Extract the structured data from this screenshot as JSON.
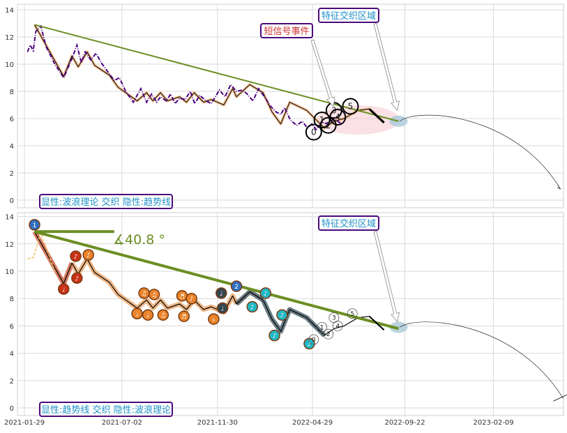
{
  "chart_data": [
    {
      "type": "line",
      "panel": "top",
      "ylim": [
        -0.4,
        14.4
      ],
      "yticks": [
        0,
        2,
        4,
        6,
        8,
        10,
        12,
        14
      ],
      "grid": true,
      "series": [
        {
          "role": "price",
          "color": "#4b0082",
          "style": "dash-dot",
          "x": [
            "2021-02-03",
            "2021-02-07",
            "2021-02-12",
            "2021-02-16",
            "2021-02-24",
            "2021-03-04",
            "2021-03-18",
            "2021-04-01",
            "2021-04-14",
            "2021-04-22",
            "2021-04-29",
            "2021-05-05",
            "2021-05-14",
            "2021-05-22",
            "2021-06-01",
            "2021-06-12",
            "2021-06-20",
            "2021-06-28",
            "2021-07-08",
            "2021-07-20",
            "2021-08-01",
            "2021-08-10",
            "2021-08-18",
            "2021-08-26",
            "2021-09-01",
            "2021-09-10",
            "2021-09-17",
            "2021-09-24",
            "2021-10-01",
            "2021-10-10",
            "2021-10-18",
            "2021-10-25",
            "2021-11-02",
            "2021-11-12",
            "2021-11-20",
            "2021-12-03",
            "2021-12-12",
            "2021-12-21",
            "2021-12-30",
            "2022-01-08",
            "2022-01-16",
            "2022-01-25",
            "2022-02-03",
            "2022-02-12",
            "2022-02-22",
            "2022-03-02",
            "2022-03-10",
            "2022-03-16",
            "2022-03-25",
            "2022-04-04",
            "2022-04-13",
            "2022-04-21",
            "2022-04-28",
            "2022-05-05",
            "2022-05-14",
            "2022-05-24",
            "2022-06-02",
            "2022-06-14"
          ],
          "y": [
            10.9,
            11.4,
            11.0,
            12.4,
            12.8,
            11.3,
            10.0,
            9.0,
            10.4,
            11.4,
            10.1,
            10.9,
            10.3,
            10.8,
            10.0,
            9.3,
            8.8,
            9.0,
            8.0,
            7.2,
            8.2,
            7.2,
            7.8,
            7.2,
            7.6,
            7.3,
            7.8,
            7.1,
            7.5,
            7.4,
            8.0,
            7.1,
            7.7,
            7.3,
            7.1,
            8.1,
            7.6,
            8.5,
            8.0,
            8.1,
            7.8,
            7.3,
            8.2,
            7.6,
            6.9,
            6.5,
            6.3,
            6.8,
            5.9,
            5.5,
            5.8,
            5.3,
            5.6,
            5.2,
            5.7,
            5.6,
            6.0,
            5.6
          ]
        },
        {
          "role": "wave",
          "color": "#000000",
          "x": [
            "2021-02-14",
            "2021-04-01",
            "2021-04-14",
            "2021-04-24",
            "2021-05-08",
            "2021-05-20",
            "2021-06-12",
            "2021-06-26",
            "2021-07-26",
            "2021-08-10",
            "2021-08-20",
            "2021-09-01",
            "2021-09-12",
            "2021-10-01",
            "2021-10-12",
            "2021-10-24",
            "2021-11-08",
            "2021-11-20",
            "2021-12-10",
            "2021-12-24",
            "2021-12-30",
            "2022-01-20",
            "2022-02-10",
            "2022-02-24",
            "2022-03-10",
            "2022-03-24",
            "2022-04-20",
            "2022-05-18",
            "2022-06-02",
            "2022-06-18",
            "2022-07-10",
            "2022-07-28",
            "2022-08-20"
          ],
          "y": [
            12.9,
            9.1,
            10.6,
            9.8,
            10.9,
            9.9,
            9.2,
            8.3,
            7.3,
            7.9,
            7.3,
            7.9,
            7.3,
            7.6,
            7.2,
            7.9,
            7.2,
            7.4,
            7.0,
            8.2,
            7.6,
            8.5,
            7.9,
            6.5,
            5.6,
            7.2,
            6.6,
            5.3,
            5.8,
            6.0,
            6.6,
            6.7,
            5.7
          ]
        },
        {
          "role": "trendline",
          "color": "#6b8e23",
          "x": [
            "2021-02-14",
            "2022-09-12"
          ],
          "y": [
            12.9,
            5.8
          ]
        }
      ],
      "wave_labels": [
        {
          "x": "2022-05-01",
          "y": 5.0,
          "label": "0"
        },
        {
          "x": "2022-05-14",
          "y": 5.9,
          "label": "1"
        },
        {
          "x": "2022-05-24",
          "y": 5.5,
          "label": "2"
        },
        {
          "x": "2022-06-02",
          "y": 6.6,
          "label": "3"
        },
        {
          "x": "2022-06-08",
          "y": 6.1,
          "label": "4"
        },
        {
          "x": "2022-06-28",
          "y": 6.9,
          "label": "5"
        }
      ],
      "annotations": [
        {
          "text": "特征交织区域",
          "color": "#1e90c8",
          "arrow_to": {
            "x": "2022-09-10",
            "y": 6.3
          }
        },
        {
          "text": "短信号事件",
          "color": "#cc3333",
          "arrow_to": {
            "x": "2022-06-01",
            "y": 6.7
          }
        },
        {
          "text": "显性:波浪理论 交织 隐性:趋势线",
          "color": "#1e90c8"
        }
      ],
      "projection_curve": {
        "from": {
          "x": "2022-09-14",
          "y": 5.8
        },
        "peak": {
          "x": "2022-11-12",
          "y": 6.3
        },
        "to": {
          "x": "2023-05-26",
          "y": 0.8
        }
      }
    },
    {
      "type": "line",
      "panel": "bottom",
      "ylim": [
        -0.4,
        14.4
      ],
      "yticks": [
        0,
        2,
        4,
        6,
        8,
        10,
        12,
        14
      ],
      "grid": true,
      "series": [
        {
          "role": "wave",
          "color": "#000000",
          "x": [
            "2021-02-14",
            "2021-04-01",
            "2021-04-14",
            "2021-04-24",
            "2021-05-08",
            "2021-05-20",
            "2021-06-12",
            "2021-06-26",
            "2021-07-26",
            "2021-08-10",
            "2021-08-20",
            "2021-09-01",
            "2021-09-12",
            "2021-10-01",
            "2021-10-12",
            "2021-10-24",
            "2021-11-08",
            "2021-11-20",
            "2021-12-10",
            "2021-12-24",
            "2021-12-30",
            "2022-01-20",
            "2022-02-10",
            "2022-02-24",
            "2022-03-10",
            "2022-03-24",
            "2022-04-20",
            "2022-05-18",
            "2022-06-02",
            "2022-06-18",
            "2022-07-10",
            "2022-07-28",
            "2022-08-20"
          ],
          "y": [
            12.9,
            9.1,
            10.6,
            9.8,
            10.9,
            9.9,
            9.2,
            8.3,
            7.3,
            7.9,
            7.3,
            7.9,
            7.3,
            7.6,
            7.2,
            7.9,
            7.2,
            7.4,
            7.0,
            8.2,
            7.6,
            8.5,
            7.9,
            6.5,
            5.6,
            7.2,
            6.6,
            5.3,
            5.8,
            6.0,
            6.6,
            6.7,
            5.7
          ]
        },
        {
          "role": "trendline",
          "color": "#6b8e23",
          "x": [
            "2021-02-14",
            "2022-09-12"
          ],
          "y": [
            12.9,
            5.8
          ]
        }
      ],
      "angle_label": "∡40.8 °",
      "wave_nodes": [
        {
          "x": "2021-02-14",
          "y": 13.4,
          "label": "1",
          "color": "#2f6fc2"
        },
        {
          "x": "2021-04-01",
          "y": 8.7,
          "label": "♩",
          "color": "#c83218"
        },
        {
          "x": "2021-04-20",
          "y": 11.1,
          "label": "♪",
          "color": "#c83218"
        },
        {
          "x": "2021-04-22",
          "y": 9.5,
          "label": "♪",
          "color": "#c83218"
        },
        {
          "x": "2021-05-10",
          "y": 11.2,
          "label": "♪",
          "color": "#e9842c"
        },
        {
          "x": "2021-07-26",
          "y": 6.9,
          "label": "♩",
          "color": "#e9842c"
        },
        {
          "x": "2021-08-06",
          "y": 8.4,
          "label": "♫",
          "color": "#e9842c"
        },
        {
          "x": "2021-08-12",
          "y": 6.8,
          "label": "♩",
          "color": "#e9842c"
        },
        {
          "x": "2021-08-22",
          "y": 8.3,
          "label": "♫",
          "color": "#e9842c"
        },
        {
          "x": "2021-09-05",
          "y": 6.8,
          "label": "♫",
          "color": "#e9842c"
        },
        {
          "x": "2021-10-05",
          "y": 8.2,
          "label": "♬",
          "color": "#e9842c"
        },
        {
          "x": "2021-10-08",
          "y": 6.7,
          "label": "♬",
          "color": "#e9842c"
        },
        {
          "x": "2021-10-20",
          "y": 8.0,
          "label": "♪",
          "color": "#e9842c"
        },
        {
          "x": "2021-11-24",
          "y": 6.5,
          "label": "♭",
          "color": "#e9842c"
        },
        {
          "x": "2021-12-06",
          "y": 8.4,
          "label": "♩",
          "color": "#37474f"
        },
        {
          "x": "2021-12-08",
          "y": 7.3,
          "label": "♩",
          "color": "#37474f"
        },
        {
          "x": "2021-12-30",
          "y": 8.9,
          "label": "2",
          "color": "#2f6fc2"
        },
        {
          "x": "2022-01-24",
          "y": 7.4,
          "label": "♪",
          "color": "#22b8c4"
        },
        {
          "x": "2022-02-14",
          "y": 8.4,
          "label": "♪",
          "color": "#22b8c4"
        },
        {
          "x": "2022-02-28",
          "y": 5.3,
          "label": "♪",
          "color": "#22b8c4"
        },
        {
          "x": "2022-03-12",
          "y": 6.8,
          "label": "♪",
          "color": "#22b8c4"
        },
        {
          "x": "2022-04-24",
          "y": 4.7,
          "label": "♪",
          "color": "#22b8c4"
        }
      ],
      "wave_labels": [
        {
          "x": "2022-05-01",
          "y": 5.0,
          "label": "0"
        },
        {
          "x": "2022-05-14",
          "y": 5.9,
          "label": "1"
        },
        {
          "x": "2022-05-24",
          "y": 5.4,
          "label": "2"
        },
        {
          "x": "2022-06-02",
          "y": 6.6,
          "label": "3"
        },
        {
          "x": "2022-06-08",
          "y": 6.0,
          "label": "4"
        },
        {
          "x": "2022-07-01",
          "y": 6.9,
          "label": "5"
        }
      ],
      "annotations": [
        {
          "text": "特征交织区域",
          "color": "#1e90c8",
          "arrow_to": {
            "x": "2022-09-10",
            "y": 6.0
          }
        },
        {
          "text": "显性:趋势线 交织 隐性:波浪理论",
          "color": "#1e90c8"
        }
      ],
      "projection_curve": {
        "from": {
          "x": "2022-09-14",
          "y": 5.9
        },
        "peak": {
          "x": "2022-11-12",
          "y": 6.3
        },
        "to": {
          "x": "2023-05-30",
          "y": 0.7
        }
      },
      "xticks": [
        "2021-01-29",
        "2021-07-02",
        "2021-11-30",
        "2022-04-29",
        "2022-09-22",
        "2023-02-09"
      ]
    }
  ]
}
